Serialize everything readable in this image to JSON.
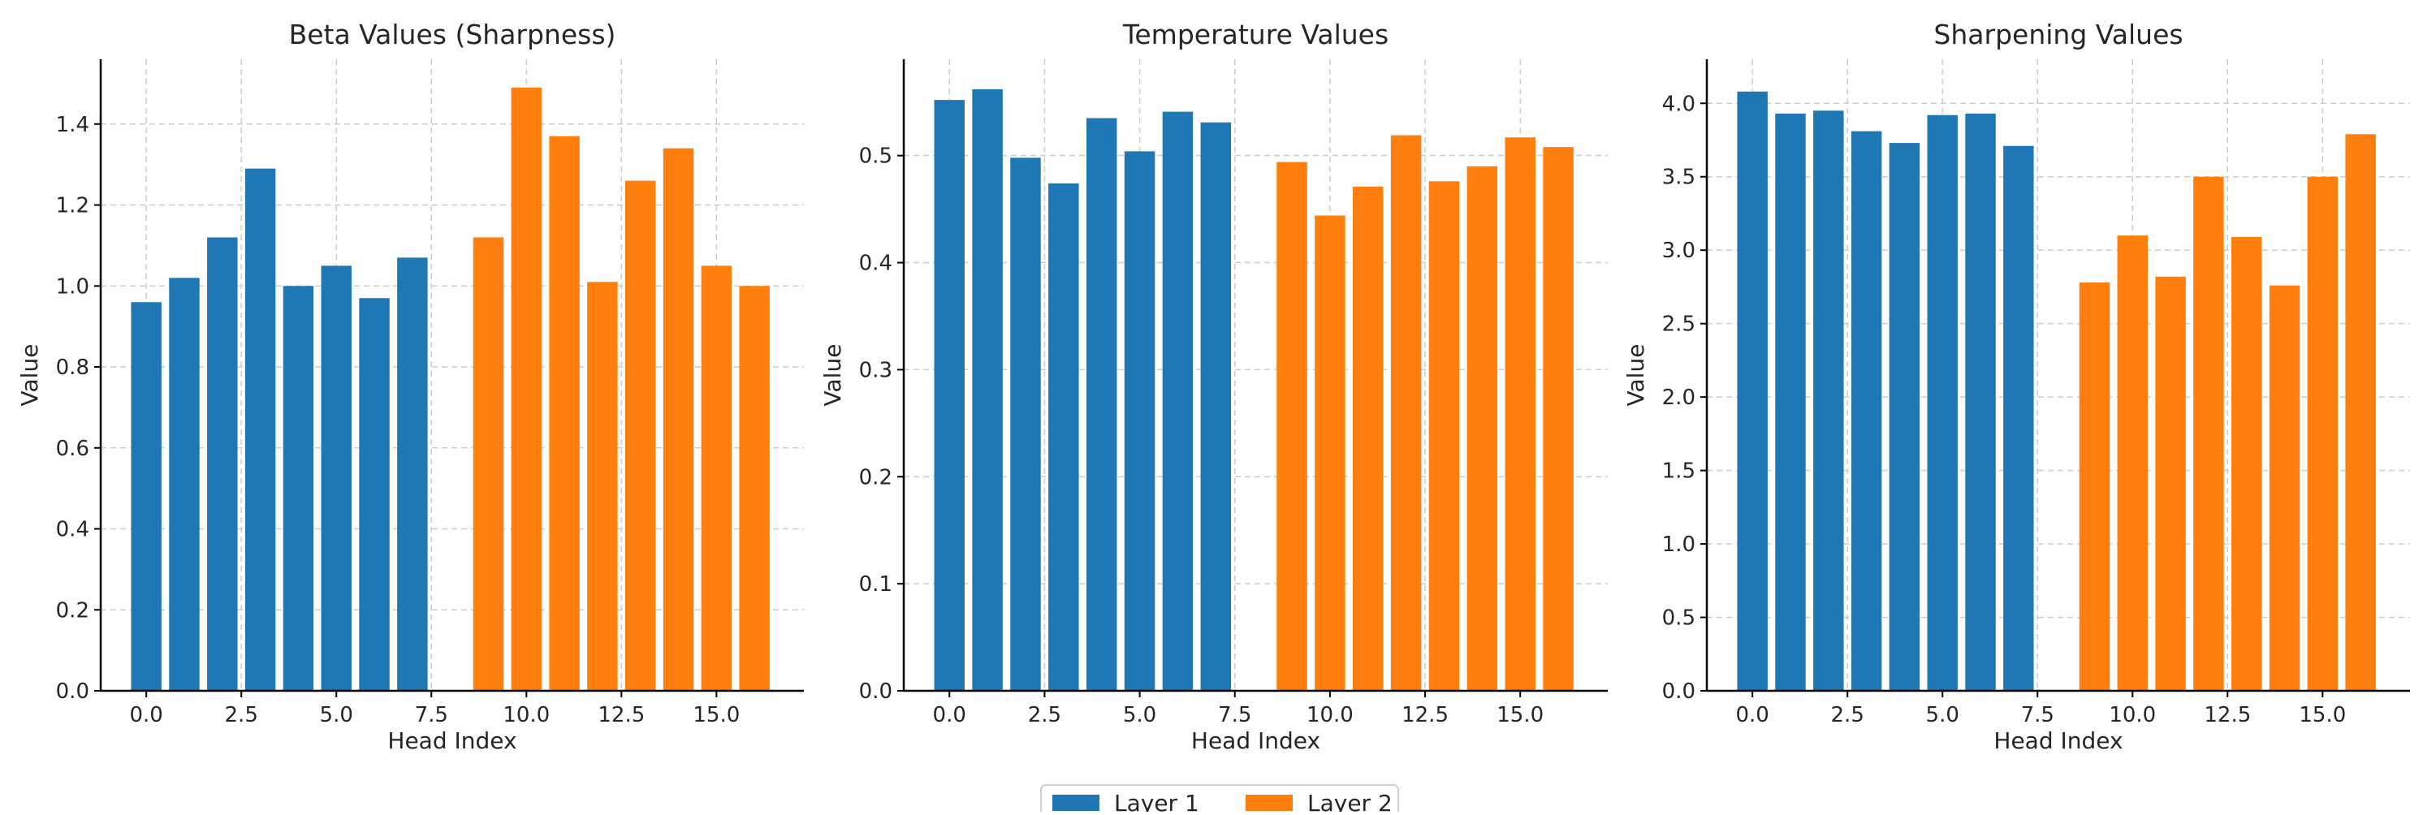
{
  "colors": {
    "layer1": "#1f77b4",
    "layer2": "#ff7f0e",
    "grid": "#cccccc",
    "axis": "#000000",
    "text": "#262626"
  },
  "legend": {
    "placement": "bottom-center",
    "items": [
      {
        "label": "Layer 1",
        "color": "#1f77b4"
      },
      {
        "label": "Layer 2",
        "color": "#ff7f0e"
      }
    ]
  },
  "chart_data": [
    {
      "type": "bar",
      "title": "Beta Values (Sharpness)",
      "xlabel": "Head Index",
      "ylabel": "Value",
      "grid": true,
      "xlim": [
        -1.2,
        17.3
      ],
      "ylim": [
        0,
        1.56
      ],
      "xticks": [
        0,
        2.5,
        5,
        7.5,
        10,
        12.5,
        15
      ],
      "xtick_labels": [
        "0.0",
        "2.5",
        "5.0",
        "7.5",
        "10.0",
        "12.5",
        "15.0"
      ],
      "yticks": [
        0,
        0.2,
        0.4,
        0.6,
        0.8,
        1.0,
        1.2,
        1.4
      ],
      "ytick_labels": [
        "0.0",
        "0.2",
        "0.4",
        "0.6",
        "0.8",
        "1.0",
        "1.2",
        "1.4"
      ],
      "series": [
        {
          "name": "Layer 1",
          "x": [
            0,
            1,
            2,
            3,
            4,
            5,
            6,
            7
          ],
          "values": [
            0.96,
            1.02,
            1.12,
            1.29,
            1.0,
            1.05,
            0.97,
            1.07
          ]
        },
        {
          "name": "Layer 2",
          "x": [
            9,
            10,
            11,
            12,
            13,
            14,
            15,
            16
          ],
          "values": [
            1.12,
            1.49,
            1.37,
            1.01,
            1.26,
            1.34,
            1.05,
            1.0
          ]
        }
      ]
    },
    {
      "type": "bar",
      "title": "Temperature Values",
      "xlabel": "Head Index",
      "ylabel": "Value",
      "grid": true,
      "xlim": [
        -1.2,
        17.3
      ],
      "ylim": [
        0,
        0.59
      ],
      "xticks": [
        0,
        2.5,
        5,
        7.5,
        10,
        12.5,
        15
      ],
      "xtick_labels": [
        "0.0",
        "2.5",
        "5.0",
        "7.5",
        "10.0",
        "12.5",
        "15.0"
      ],
      "yticks": [
        0,
        0.1,
        0.2,
        0.3,
        0.4,
        0.5
      ],
      "ytick_labels": [
        "0.0",
        "0.1",
        "0.2",
        "0.3",
        "0.4",
        "0.5"
      ],
      "series": [
        {
          "name": "Layer 1",
          "x": [
            0,
            1,
            2,
            3,
            4,
            5,
            6,
            7
          ],
          "values": [
            0.552,
            0.562,
            0.498,
            0.474,
            0.535,
            0.504,
            0.541,
            0.531
          ]
        },
        {
          "name": "Layer 2",
          "x": [
            9,
            10,
            11,
            12,
            13,
            14,
            15,
            16
          ],
          "values": [
            0.494,
            0.444,
            0.471,
            0.519,
            0.476,
            0.49,
            0.517,
            0.508
          ]
        }
      ]
    },
    {
      "type": "bar",
      "title": "Sharpening Values",
      "xlabel": "Head Index",
      "ylabel": "Value",
      "grid": true,
      "xlim": [
        -1.2,
        17.3
      ],
      "ylim": [
        0,
        4.3
      ],
      "xticks": [
        0,
        2.5,
        5,
        7.5,
        10,
        12.5,
        15
      ],
      "xtick_labels": [
        "0.0",
        "2.5",
        "5.0",
        "7.5",
        "10.0",
        "12.5",
        "15.0"
      ],
      "yticks": [
        0,
        0.5,
        1.0,
        1.5,
        2.0,
        2.5,
        3.0,
        3.5,
        4.0
      ],
      "ytick_labels": [
        "0.0",
        "0.5",
        "1.0",
        "1.5",
        "2.0",
        "2.5",
        "3.0",
        "3.5",
        "4.0"
      ],
      "series": [
        {
          "name": "Layer 1",
          "x": [
            0,
            1,
            2,
            3,
            4,
            5,
            6,
            7
          ],
          "values": [
            4.08,
            3.93,
            3.95,
            3.81,
            3.73,
            3.92,
            3.93,
            3.71
          ]
        },
        {
          "name": "Layer 2",
          "x": [
            9,
            10,
            11,
            12,
            13,
            14,
            15,
            16
          ],
          "values": [
            2.78,
            3.1,
            2.82,
            3.5,
            3.09,
            2.76,
            3.5,
            3.79
          ]
        }
      ]
    }
  ]
}
